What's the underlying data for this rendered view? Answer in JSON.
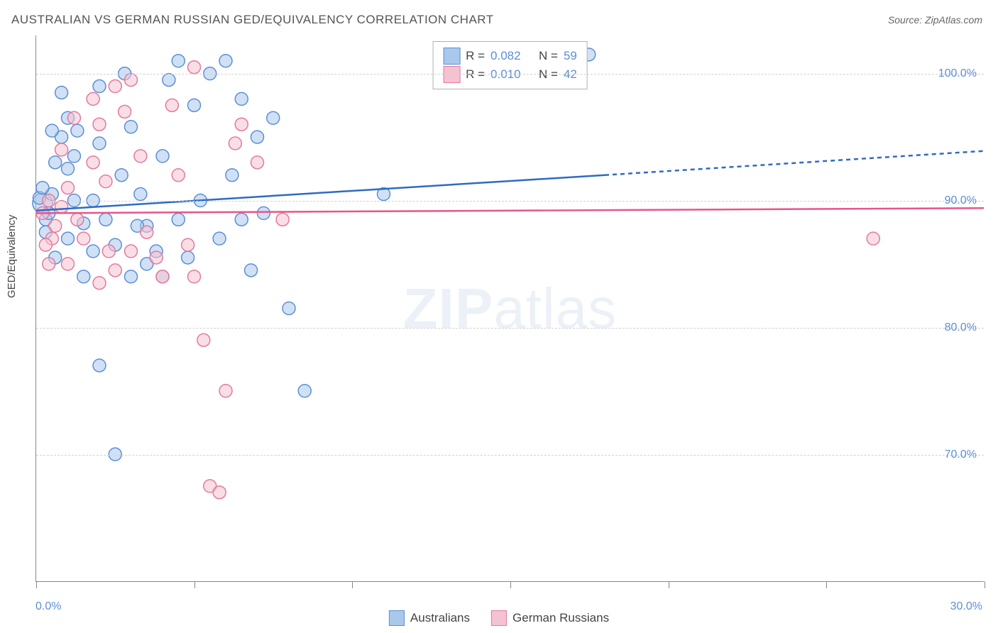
{
  "title": "AUSTRALIAN VS GERMAN RUSSIAN GED/EQUIVALENCY CORRELATION CHART",
  "source": "Source: ZipAtlas.com",
  "ylabel": "GED/Equivalency",
  "watermark_zip": "ZIP",
  "watermark_atlas": "atlas",
  "chart": {
    "type": "scatter-correlation",
    "background_color": "#ffffff",
    "grid_color": "#d0d0d0",
    "axis_color": "#888888",
    "tick_label_color": "#5b8fd6",
    "tick_fontsize": 16,
    "title_fontsize": 17,
    "title_color": "#555555",
    "xlim": [
      0,
      30
    ],
    "ylim": [
      60,
      103
    ],
    "x_ticks": [
      0,
      5,
      10,
      15,
      20,
      25,
      30
    ],
    "x_tick_labels_shown": {
      "0": "0.0%",
      "30": "30.0%"
    },
    "y_gridlines": [
      70,
      80,
      90,
      100
    ],
    "y_tick_labels": {
      "70": "70.0%",
      "80": "80.0%",
      "90": "90.0%",
      "100": "100.0%"
    },
    "marker_radius": 9,
    "marker_radius_large": 14,
    "marker_opacity": 0.55,
    "marker_stroke_width": 1.5,
    "series": [
      {
        "name": "Australians",
        "fill_color": "#a9c8ec",
        "stroke_color": "#5b8fd6",
        "line_color": "#2e6bc4",
        "legend_R": "0.082",
        "legend_N": "59",
        "regression": {
          "solid": {
            "x1": 0,
            "y1": 89.2,
            "x2": 18,
            "y2": 92.0
          },
          "dashed": {
            "x1": 18,
            "y1": 92.0,
            "x2": 30,
            "y2": 93.9
          },
          "width": 2.5,
          "dash_pattern": "6,5"
        },
        "points": [
          [
            0.2,
            89.8,
            14
          ],
          [
            0.1,
            90.2,
            9
          ],
          [
            0.3,
            88.5,
            9
          ],
          [
            0.4,
            89.0,
            9
          ],
          [
            0.3,
            87.5,
            9
          ],
          [
            0.5,
            90.5,
            9
          ],
          [
            0.2,
            91.0,
            9
          ],
          [
            0.6,
            93.0,
            9
          ],
          [
            0.8,
            95.0,
            9
          ],
          [
            1.0,
            92.5,
            9
          ],
          [
            1.2,
            90.0,
            9
          ],
          [
            1.5,
            88.2,
            9
          ],
          [
            1.8,
            86.0,
            9
          ],
          [
            1.3,
            95.5,
            9
          ],
          [
            2.0,
            94.5,
            9
          ],
          [
            2.2,
            88.5,
            9
          ],
          [
            2.5,
            86.5,
            9
          ],
          [
            2.7,
            92.0,
            9
          ],
          [
            3.0,
            95.8,
            9
          ],
          [
            3.3,
            90.5,
            9
          ],
          [
            3.5,
            88.0,
            9
          ],
          [
            3.8,
            86.0,
            9
          ],
          [
            4.0,
            93.5,
            9
          ],
          [
            4.2,
            99.5,
            9
          ],
          [
            4.5,
            101.0,
            9
          ],
          [
            4.8,
            85.5,
            9
          ],
          [
            5.0,
            97.5,
            9
          ],
          [
            5.2,
            90.0,
            9
          ],
          [
            5.5,
            100.0,
            9
          ],
          [
            5.8,
            87.0,
            9
          ],
          [
            6.0,
            101.0,
            9
          ],
          [
            6.2,
            92.0,
            9
          ],
          [
            6.5,
            98.0,
            9
          ],
          [
            7.0,
            95.0,
            9
          ],
          [
            7.5,
            96.5,
            9
          ],
          [
            8.0,
            81.5,
            9
          ],
          [
            8.5,
            75.0,
            9
          ],
          [
            6.8,
            84.5,
            9
          ],
          [
            7.2,
            89.0,
            9
          ],
          [
            1.0,
            87.0,
            9
          ],
          [
            1.5,
            84.0,
            9
          ],
          [
            2.0,
            77.0,
            9
          ],
          [
            2.5,
            70.0,
            9
          ],
          [
            3.0,
            84.0,
            9
          ],
          [
            11.0,
            90.5,
            9
          ],
          [
            17.5,
            101.5,
            9
          ],
          [
            0.5,
            95.5,
            9
          ],
          [
            1.0,
            96.5,
            9
          ],
          [
            0.8,
            98.5,
            9
          ],
          [
            2.0,
            99.0,
            9
          ],
          [
            2.8,
            100.0,
            9
          ],
          [
            3.5,
            85.0,
            9
          ],
          [
            4.0,
            84.0,
            9
          ],
          [
            0.6,
            85.5,
            9
          ],
          [
            1.2,
            93.5,
            9
          ],
          [
            1.8,
            90.0,
            9
          ],
          [
            3.2,
            88.0,
            9
          ],
          [
            4.5,
            88.5,
            9
          ],
          [
            6.5,
            88.5,
            9
          ]
        ]
      },
      {
        "name": "German Russians",
        "fill_color": "#f5c2d1",
        "stroke_color": "#e47a9b",
        "line_color": "#e8558a",
        "legend_R": "0.010",
        "legend_N": "42",
        "regression": {
          "solid": {
            "x1": 0,
            "y1": 89.0,
            "x2": 30,
            "y2": 89.4
          },
          "dashed": null,
          "width": 2.5,
          "dash_pattern": null
        },
        "points": [
          [
            0.2,
            89.0,
            9
          ],
          [
            0.4,
            90.0,
            9
          ],
          [
            0.6,
            88.0,
            9
          ],
          [
            0.8,
            89.5,
            9
          ],
          [
            1.0,
            91.0,
            9
          ],
          [
            1.3,
            88.5,
            9
          ],
          [
            1.5,
            87.0,
            9
          ],
          [
            1.8,
            93.0,
            9
          ],
          [
            2.0,
            96.0,
            9
          ],
          [
            2.3,
            86.0,
            9
          ],
          [
            2.5,
            99.0,
            9
          ],
          [
            2.8,
            97.0,
            9
          ],
          [
            3.0,
            99.5,
            9
          ],
          [
            3.3,
            93.5,
            9
          ],
          [
            3.5,
            87.5,
            9
          ],
          [
            3.8,
            85.5,
            9
          ],
          [
            4.0,
            84.0,
            9
          ],
          [
            4.3,
            97.5,
            9
          ],
          [
            4.5,
            92.0,
            9
          ],
          [
            4.8,
            86.5,
            9
          ],
          [
            5.0,
            84.0,
            9
          ],
          [
            5.3,
            79.0,
            9
          ],
          [
            5.5,
            67.5,
            9
          ],
          [
            5.8,
            67.0,
            9
          ],
          [
            6.0,
            75.0,
            9
          ],
          [
            6.3,
            94.5,
            9
          ],
          [
            6.5,
            96.0,
            9
          ],
          [
            7.0,
            93.0,
            9
          ],
          [
            7.8,
            88.5,
            9
          ],
          [
            1.0,
            85.0,
            9
          ],
          [
            2.0,
            83.5,
            9
          ],
          [
            2.5,
            84.5,
            9
          ],
          [
            3.0,
            86.0,
            9
          ],
          [
            0.5,
            87.0,
            9
          ],
          [
            1.2,
            96.5,
            9
          ],
          [
            1.8,
            98.0,
            9
          ],
          [
            2.2,
            91.5,
            9
          ],
          [
            0.3,
            86.5,
            9
          ],
          [
            26.5,
            87.0,
            9
          ],
          [
            0.8,
            94.0,
            9
          ],
          [
            0.4,
            85.0,
            9
          ],
          [
            5.0,
            100.5,
            9
          ]
        ]
      }
    ]
  },
  "legend_top": {
    "border_color": "#b0b0b0",
    "rows": [
      {
        "swatch_fill": "#a9c8ec",
        "swatch_stroke": "#5b8fd6",
        "r_label": "R =",
        "r_val": "0.082",
        "n_label": "N =",
        "n_val": "59"
      },
      {
        "swatch_fill": "#f5c2d1",
        "swatch_stroke": "#e47a9b",
        "r_label": "R =",
        "r_val": "0.010",
        "n_label": "N =",
        "n_val": "42"
      }
    ]
  },
  "legend_bottom": {
    "items": [
      {
        "swatch_fill": "#a9c8ec",
        "swatch_stroke": "#5b8fd6",
        "label": "Australians"
      },
      {
        "swatch_fill": "#f5c2d1",
        "swatch_stroke": "#e47a9b",
        "label": "German Russians"
      }
    ]
  }
}
